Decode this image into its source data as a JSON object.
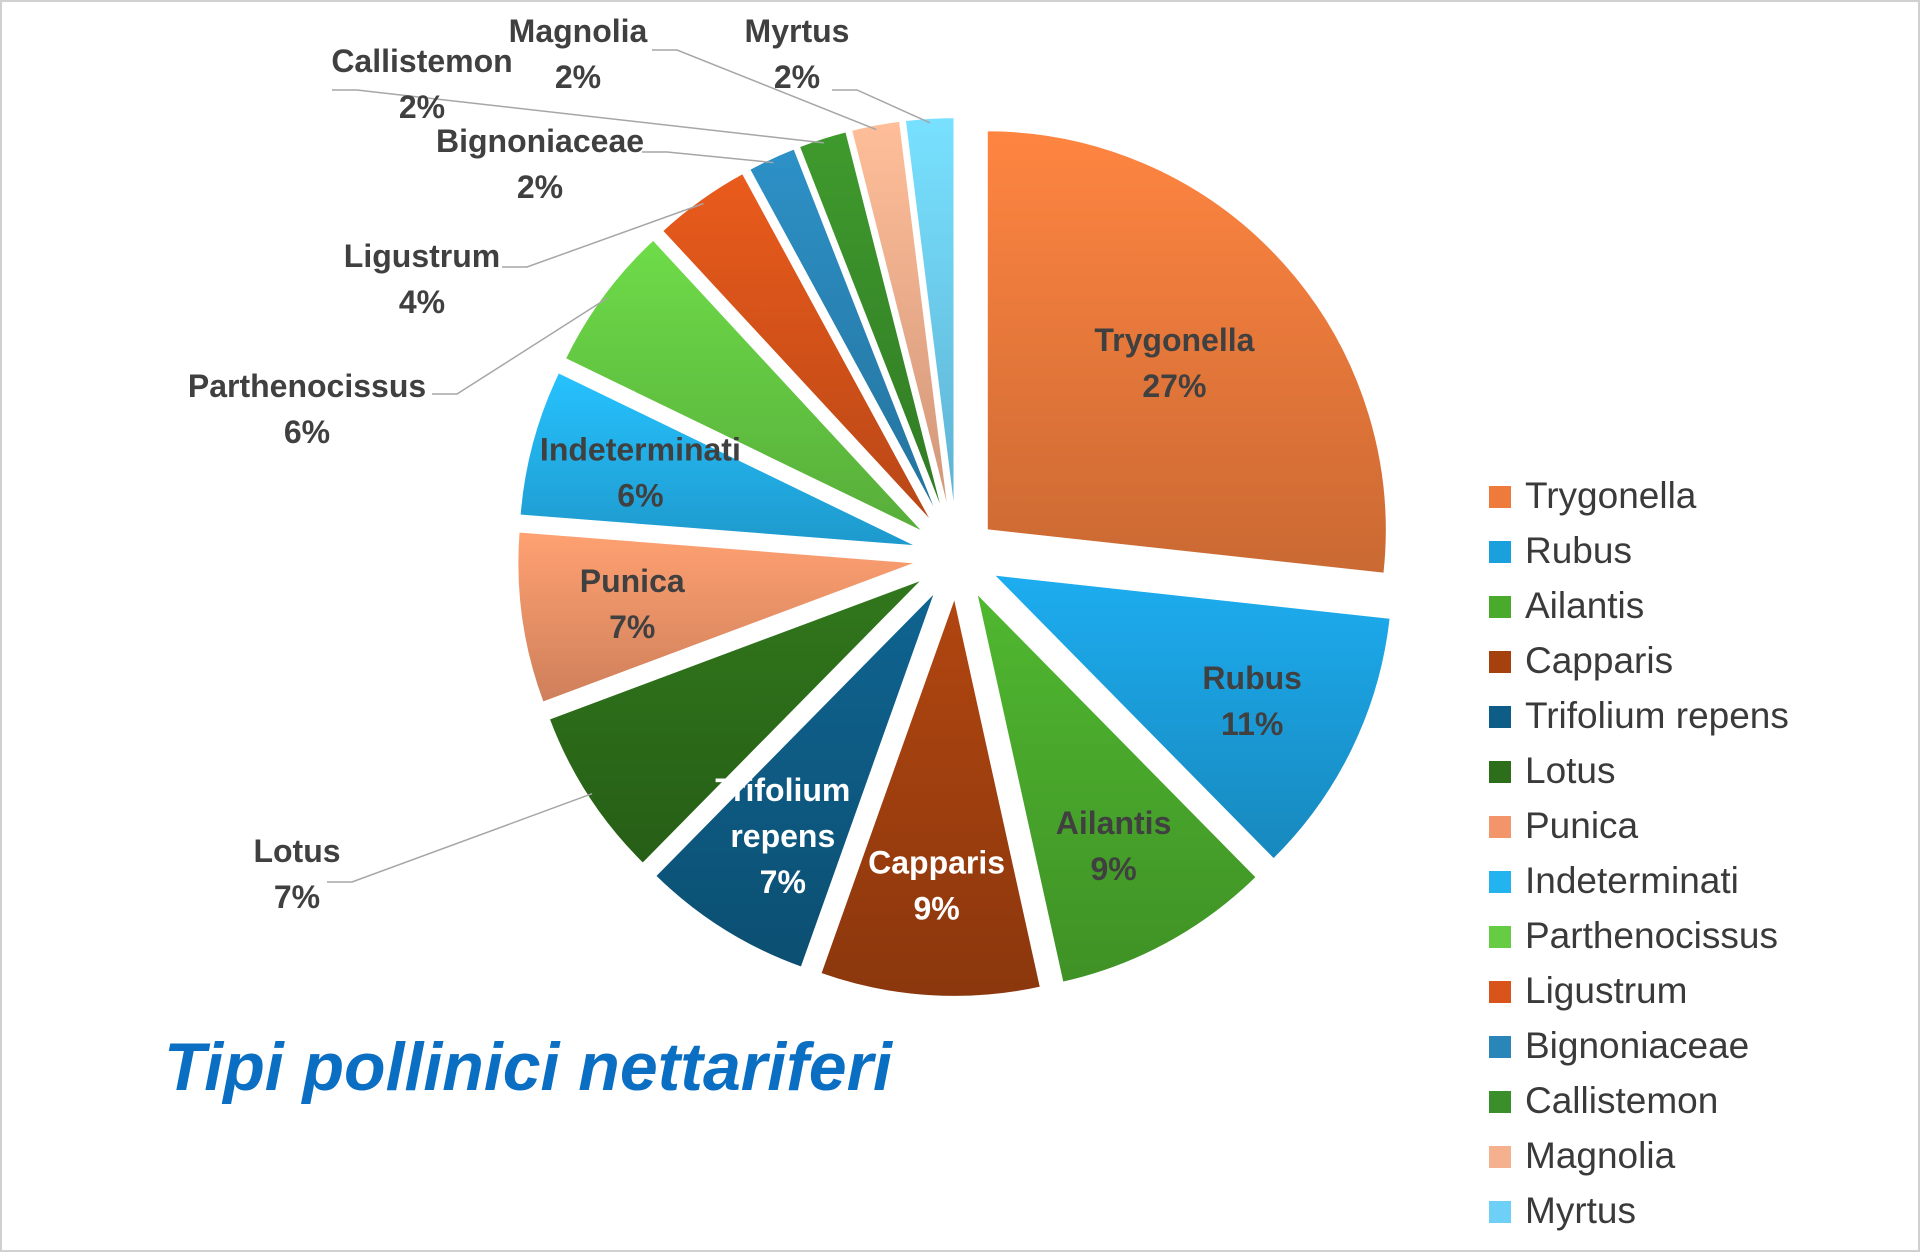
{
  "chart_data": {
    "type": "pie",
    "title": "Tipi pollinici nettariferi",
    "exploded": true,
    "legend_position": "right",
    "slices": [
      {
        "label": "Trygonella",
        "value": 27,
        "display": "27%",
        "color": "#ee7b3c",
        "label_color": "#404040",
        "label_placement": "inside"
      },
      {
        "label": "Rubus",
        "value": 11,
        "display": "11%",
        "color": "#1ba0de",
        "label_color": "#404040",
        "label_placement": "inside"
      },
      {
        "label": "Ailantis",
        "value": 9,
        "display": "9%",
        "color": "#4aaa2c",
        "label_color": "#404040",
        "label_placement": "inside"
      },
      {
        "label": "Capparis",
        "value": 9,
        "display": "9%",
        "color": "#a4410f",
        "label_color": "#ffffff",
        "label_placement": "inside"
      },
      {
        "label": "Trifolium repens",
        "value": 7,
        "display": "7%",
        "color": "#0e5d86",
        "label_color": "#ffffff",
        "label_placement": "inside"
      },
      {
        "label": "Lotus",
        "value": 7,
        "display": "7%",
        "color": "#2d6e1a",
        "label_color": "#404040",
        "label_placement": "outside"
      },
      {
        "label": "Punica",
        "value": 7,
        "display": "7%",
        "color": "#f2956a",
        "label_color": "#404040",
        "label_placement": "inside"
      },
      {
        "label": "Indeterminati",
        "value": 6,
        "display": "6%",
        "color": "#23b4f0",
        "label_color": "#404040",
        "label_placement": "inside"
      },
      {
        "label": "Parthenocissus",
        "value": 6,
        "display": "6%",
        "color": "#66cc44",
        "label_color": "#404040",
        "label_placement": "outside"
      },
      {
        "label": "Ligustrum",
        "value": 4,
        "display": "4%",
        "color": "#d9541a",
        "label_color": "#404040",
        "label_placement": "outside"
      },
      {
        "label": "Bignoniaceae",
        "value": 2,
        "display": "2%",
        "color": "#2a86b8",
        "label_color": "#404040",
        "label_placement": "outside"
      },
      {
        "label": "Callistemon",
        "value": 2,
        "display": "2%",
        "color": "#3a8f2a",
        "label_color": "#404040",
        "label_placement": "outside"
      },
      {
        "label": "Magnolia",
        "value": 2,
        "display": "2%",
        "color": "#f5b08e",
        "label_color": "#404040",
        "label_placement": "outside"
      },
      {
        "label": "Myrtus",
        "value": 2,
        "display": "2%",
        "color": "#6fd0f7",
        "label_color": "#404040",
        "label_placement": "outside"
      }
    ]
  }
}
